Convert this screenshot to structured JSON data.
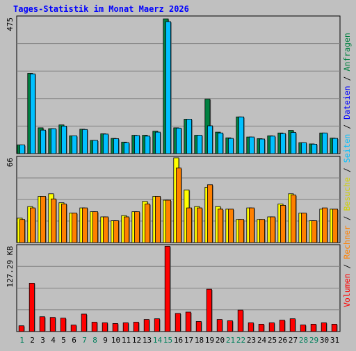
{
  "title": "Tages-Statistik im Monat Maerz 2026",
  "right_axis": {
    "anfragen": "Anfragen",
    "dateien": "Dateien",
    "seiten": "Seiten",
    "besuche": "Besuche",
    "rechner": "Rechner",
    "volumen": "Volumen",
    "sep": " / "
  },
  "colors": {
    "title": "#0000ff",
    "hits": "#008040",
    "files": "#00c0ff",
    "pages": "#00c0ff",
    "visits": "#ffff00",
    "sites": "#ff8000",
    "volume": "#ff0000",
    "weekend_label": "#00805c",
    "weekday_label": "#000000",
    "background": "#c0c0c0",
    "grid": "#808080"
  },
  "chart_data": [
    {
      "type": "bar",
      "panel": "top",
      "ymax_label": "475",
      "ylim": [
        0,
        475
      ],
      "x": [
        "1",
        "2",
        "3",
        "4",
        "5",
        "6",
        "7",
        "8",
        "9",
        "10",
        "11",
        "12",
        "13",
        "14",
        "15",
        "16",
        "17",
        "18",
        "19",
        "20",
        "21",
        "22",
        "23",
        "24",
        "25",
        "26",
        "27",
        "28",
        "29",
        "30",
        "31"
      ],
      "weekend_days": [
        "1",
        "7",
        "8",
        "14",
        "15",
        "21",
        "22",
        "28",
        "29"
      ],
      "series": [
        {
          "key": "hits",
          "name": "Anfragen",
          "values": [
            30,
            280,
            90,
            87,
            100,
            62,
            85,
            46,
            69,
            53,
            40,
            64,
            64,
            78,
            470,
            90,
            120,
            64,
            190,
            75,
            55,
            128,
            58,
            52,
            62,
            72,
            81,
            38,
            34,
            72,
            54
          ]
        },
        {
          "key": "files",
          "name": "Dateien",
          "values": [
            30,
            278,
            82,
            87,
            96,
            62,
            84,
            46,
            68,
            52,
            38,
            63,
            61,
            75,
            460,
            89,
            120,
            64,
            97,
            72,
            53,
            128,
            58,
            51,
            61,
            70,
            74,
            38,
            33,
            72,
            53
          ]
        }
      ]
    },
    {
      "type": "bar",
      "panel": "middle",
      "ymax_label": "66",
      "ylim": [
        0,
        66
      ],
      "series": [
        {
          "key": "visits",
          "name": "Besuche",
          "values": [
            19,
            28,
            36,
            38,
            31,
            23,
            27,
            24,
            20,
            17,
            21,
            24,
            32,
            36,
            33,
            66,
            41,
            28,
            43,
            28,
            26,
            18,
            27,
            18,
            20,
            30,
            38,
            23,
            17,
            26,
            26
          ]
        },
        {
          "key": "sites",
          "name": "Rechner",
          "values": [
            18,
            27,
            36,
            34,
            30,
            23,
            27,
            24,
            20,
            17,
            20,
            24,
            30,
            36,
            33,
            58,
            27,
            27,
            45,
            26,
            26,
            18,
            27,
            18,
            20,
            29,
            37,
            23,
            17,
            27,
            26
          ]
        }
      ]
    },
    {
      "type": "bar",
      "panel": "bottom",
      "ymax_label": "127.29 KB",
      "ylim": [
        0,
        127.29
      ],
      "series": [
        {
          "key": "volume",
          "name": "Volumen",
          "values": [
            8.6,
            72,
            22,
            21,
            20,
            9.6,
            26,
            14,
            13,
            12,
            13,
            14,
            18,
            19,
            127,
            27,
            29,
            15,
            63,
            18,
            16,
            32,
            13,
            11,
            13,
            17,
            19,
            9.8,
            11,
            13,
            11
          ]
        }
      ]
    }
  ]
}
